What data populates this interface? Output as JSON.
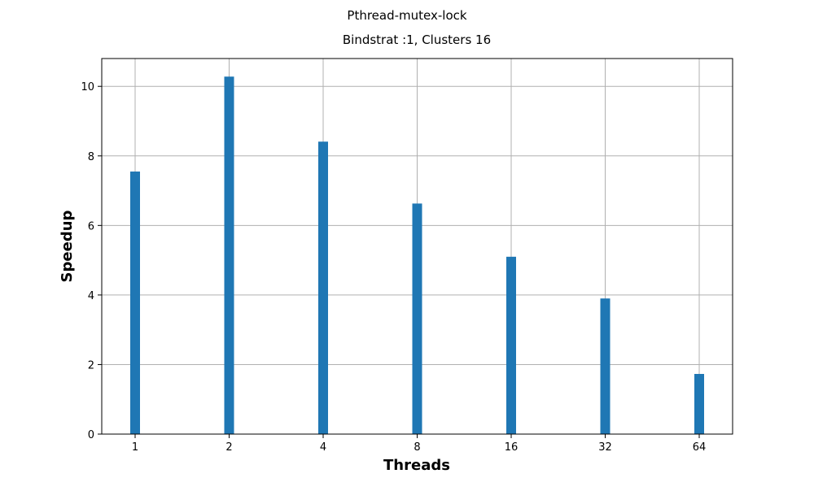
{
  "chart_data": {
    "type": "bar",
    "suptitle": "Pthread-mutex-lock",
    "title": "Bindstrat :1, Clusters 16",
    "xlabel": "Threads",
    "ylabel": "Speedup",
    "categories": [
      "1",
      "2",
      "4",
      "8",
      "16",
      "32",
      "64"
    ],
    "values": [
      7.55,
      10.28,
      8.41,
      6.63,
      5.1,
      3.9,
      1.73
    ],
    "ylim": [
      0,
      10.8
    ],
    "yticks": [
      0,
      2,
      4,
      6,
      8,
      10
    ],
    "grid": true,
    "bar_color": "#1f77b4",
    "grid_color": "#b0b0b0"
  }
}
